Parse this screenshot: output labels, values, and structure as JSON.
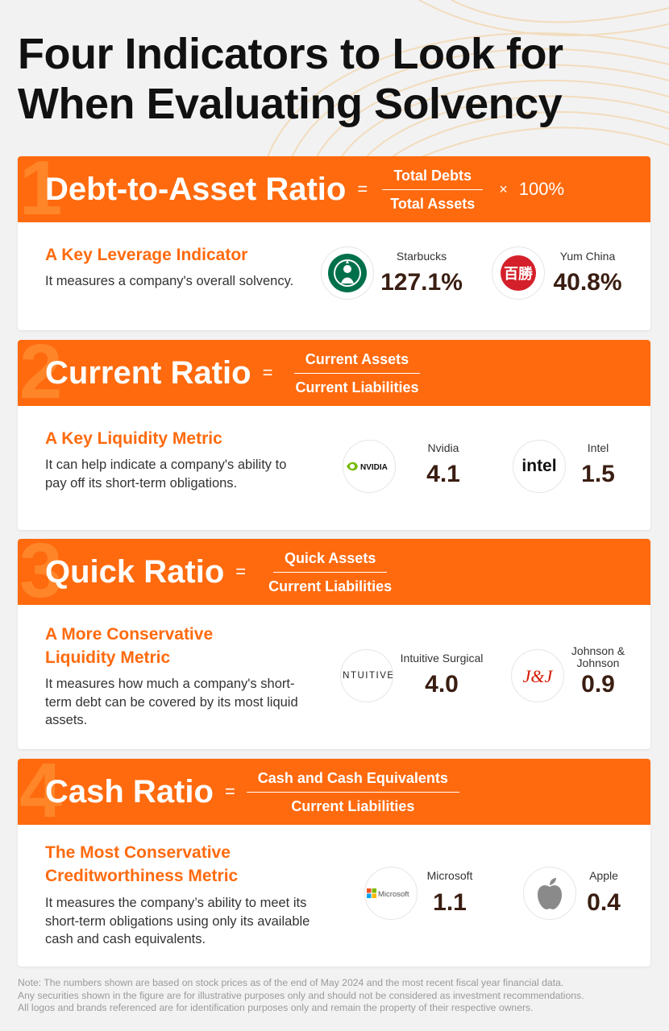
{
  "title": "Four Indicators to Look for When Evaluating Solvency",
  "colors": {
    "accent": "#ff6a0e",
    "value": "#3a1e12"
  },
  "cards": [
    {
      "number": "1",
      "name": "Debt-to-Asset Ratio",
      "equals": "=",
      "numerator": "Total Debts",
      "denominator": "Total Assets",
      "times": "×",
      "multiplier": "100%",
      "subtitle": "A Key Leverage Indicator",
      "description": "It measures a company's overall solvency.",
      "companies": [
        {
          "name": "Starbucks",
          "value": "127.1%",
          "icon": "starbucks-logo"
        },
        {
          "name": "Yum China",
          "value": "40.8%",
          "icon": "yum-china-logo"
        }
      ]
    },
    {
      "number": "2",
      "name": "Current Ratio",
      "equals": "=",
      "numerator": "Current Assets",
      "denominator": "Current Liabilities",
      "subtitle": "A Key Liquidity Metric",
      "description": "It can help indicate a company's ability to pay off its short-term obligations.",
      "companies": [
        {
          "name": "Nvidia",
          "value": "4.1",
          "icon": "nvidia-logo",
          "logo_text": "NVIDIA"
        },
        {
          "name": "Intel",
          "value": "1.5",
          "icon": "intel-logo",
          "logo_text": "intel"
        }
      ]
    },
    {
      "number": "3",
      "name": "Quick Ratio",
      "equals": "=",
      "numerator": "Quick Assets",
      "denominator": "Current Liabilities",
      "subtitle": "A More Conservative Liquidity Metric",
      "description": "It measures how much a company's short-term debt can be covered by its most liquid assets.",
      "companies": [
        {
          "name": "Intuitive Surgical",
          "value": "4.0",
          "icon": "intuitive-logo",
          "logo_text": "INTUITIVE"
        },
        {
          "name": "Johnson & Johnson",
          "value": "0.9",
          "icon": "jnj-logo"
        }
      ]
    },
    {
      "number": "4",
      "name": "Cash Ratio",
      "equals": "=",
      "numerator": "Cash and Cash Equivalents",
      "denominator": "Current Liabilities",
      "subtitle": "The Most Conservative Creditworthiness Metric",
      "description": "It measures the company’s ability to meet its short-term obligations using only its available cash and cash equivalents.",
      "companies": [
        {
          "name": "Microsoft",
          "value": "1.1",
          "icon": "microsoft-logo",
          "logo_text": "Microsoft"
        },
        {
          "name": "Apple",
          "value": "0.4",
          "icon": "apple-logo"
        }
      ]
    }
  ],
  "note": [
    "Note: The numbers shown are based on stock prices as of the end of May 2024 and the most recent fiscal year financial data.",
    "Any securities shown in the figure are for illustrative purposes only and should not be considered as investment recommendations.",
    "All logos and brands referenced are for identification purposes only and remain the property of their respective owners."
  ]
}
